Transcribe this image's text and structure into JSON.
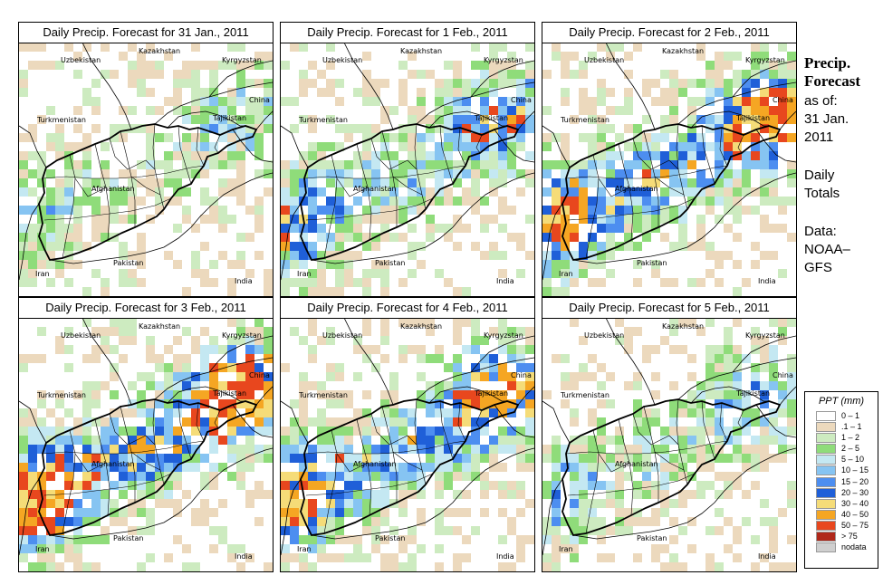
{
  "panels": [
    {
      "title": "Daily Precip. Forecast for  31 Jan., 2011",
      "intensity": 0.35
    },
    {
      "title": "Daily Precip. Forecast for  1 Feb., 2011",
      "intensity": 0.6
    },
    {
      "title": "Daily Precip. Forecast for  2 Feb., 2011",
      "intensity": 0.85
    },
    {
      "title": "Daily Precip. Forecast for  3 Feb., 2011",
      "intensity": 0.95
    },
    {
      "title": "Daily Precip. Forecast for  4 Feb., 2011",
      "intensity": 0.8
    },
    {
      "title": "Daily Precip. Forecast for  5 Feb., 2011",
      "intensity": 0.45
    }
  ],
  "countries": {
    "kazakhstan": "Kazakhstan",
    "uzbekistan": "Uzbekistan",
    "kyrgyzstan": "Kyrgyzstan",
    "china": "China",
    "turkmenistan": "Turkmenistan",
    "tajikistan": "Tajikistan",
    "afghanistan": "Afghanistan",
    "pakistan": "Pakistan",
    "iran": "Iran",
    "india": "India"
  },
  "side": {
    "title_line1": "Precip.",
    "title_line2": "Forecast",
    "asof": "as of:",
    "date_line1": "31 Jan.",
    "date_line2": "2011",
    "daily_line1": "Daily",
    "daily_line2": "Totals",
    "data_line1": "Data:",
    "data_line2": "NOAA–",
    "data_line3": "GFS"
  },
  "legend": {
    "title": "PPT (mm)",
    "items": [
      {
        "label": "0 – 1",
        "color": "#ffffff"
      },
      {
        "label": ".1 – 1",
        "color": "#ecd9bd"
      },
      {
        "label": "1 – 2",
        "color": "#cdebc0"
      },
      {
        "label": "2 – 5",
        "color": "#8fdc7a"
      },
      {
        "label": "5 – 10",
        "color": "#c4e8f2"
      },
      {
        "label": "10 – 15",
        "color": "#86c4f2"
      },
      {
        "label": "15 – 20",
        "color": "#4d8ef0"
      },
      {
        "label": "20 – 30",
        "color": "#1f5fd8"
      },
      {
        "label": "30 – 40",
        "color": "#f5dc78"
      },
      {
        "label": "40 – 50",
        "color": "#f5a623"
      },
      {
        "label": "50 – 75",
        "color": "#e8471e"
      },
      {
        "label": "> 75",
        "color": "#b0281a"
      },
      {
        "label": "nodata",
        "color": "#cfcfcf"
      }
    ]
  }
}
